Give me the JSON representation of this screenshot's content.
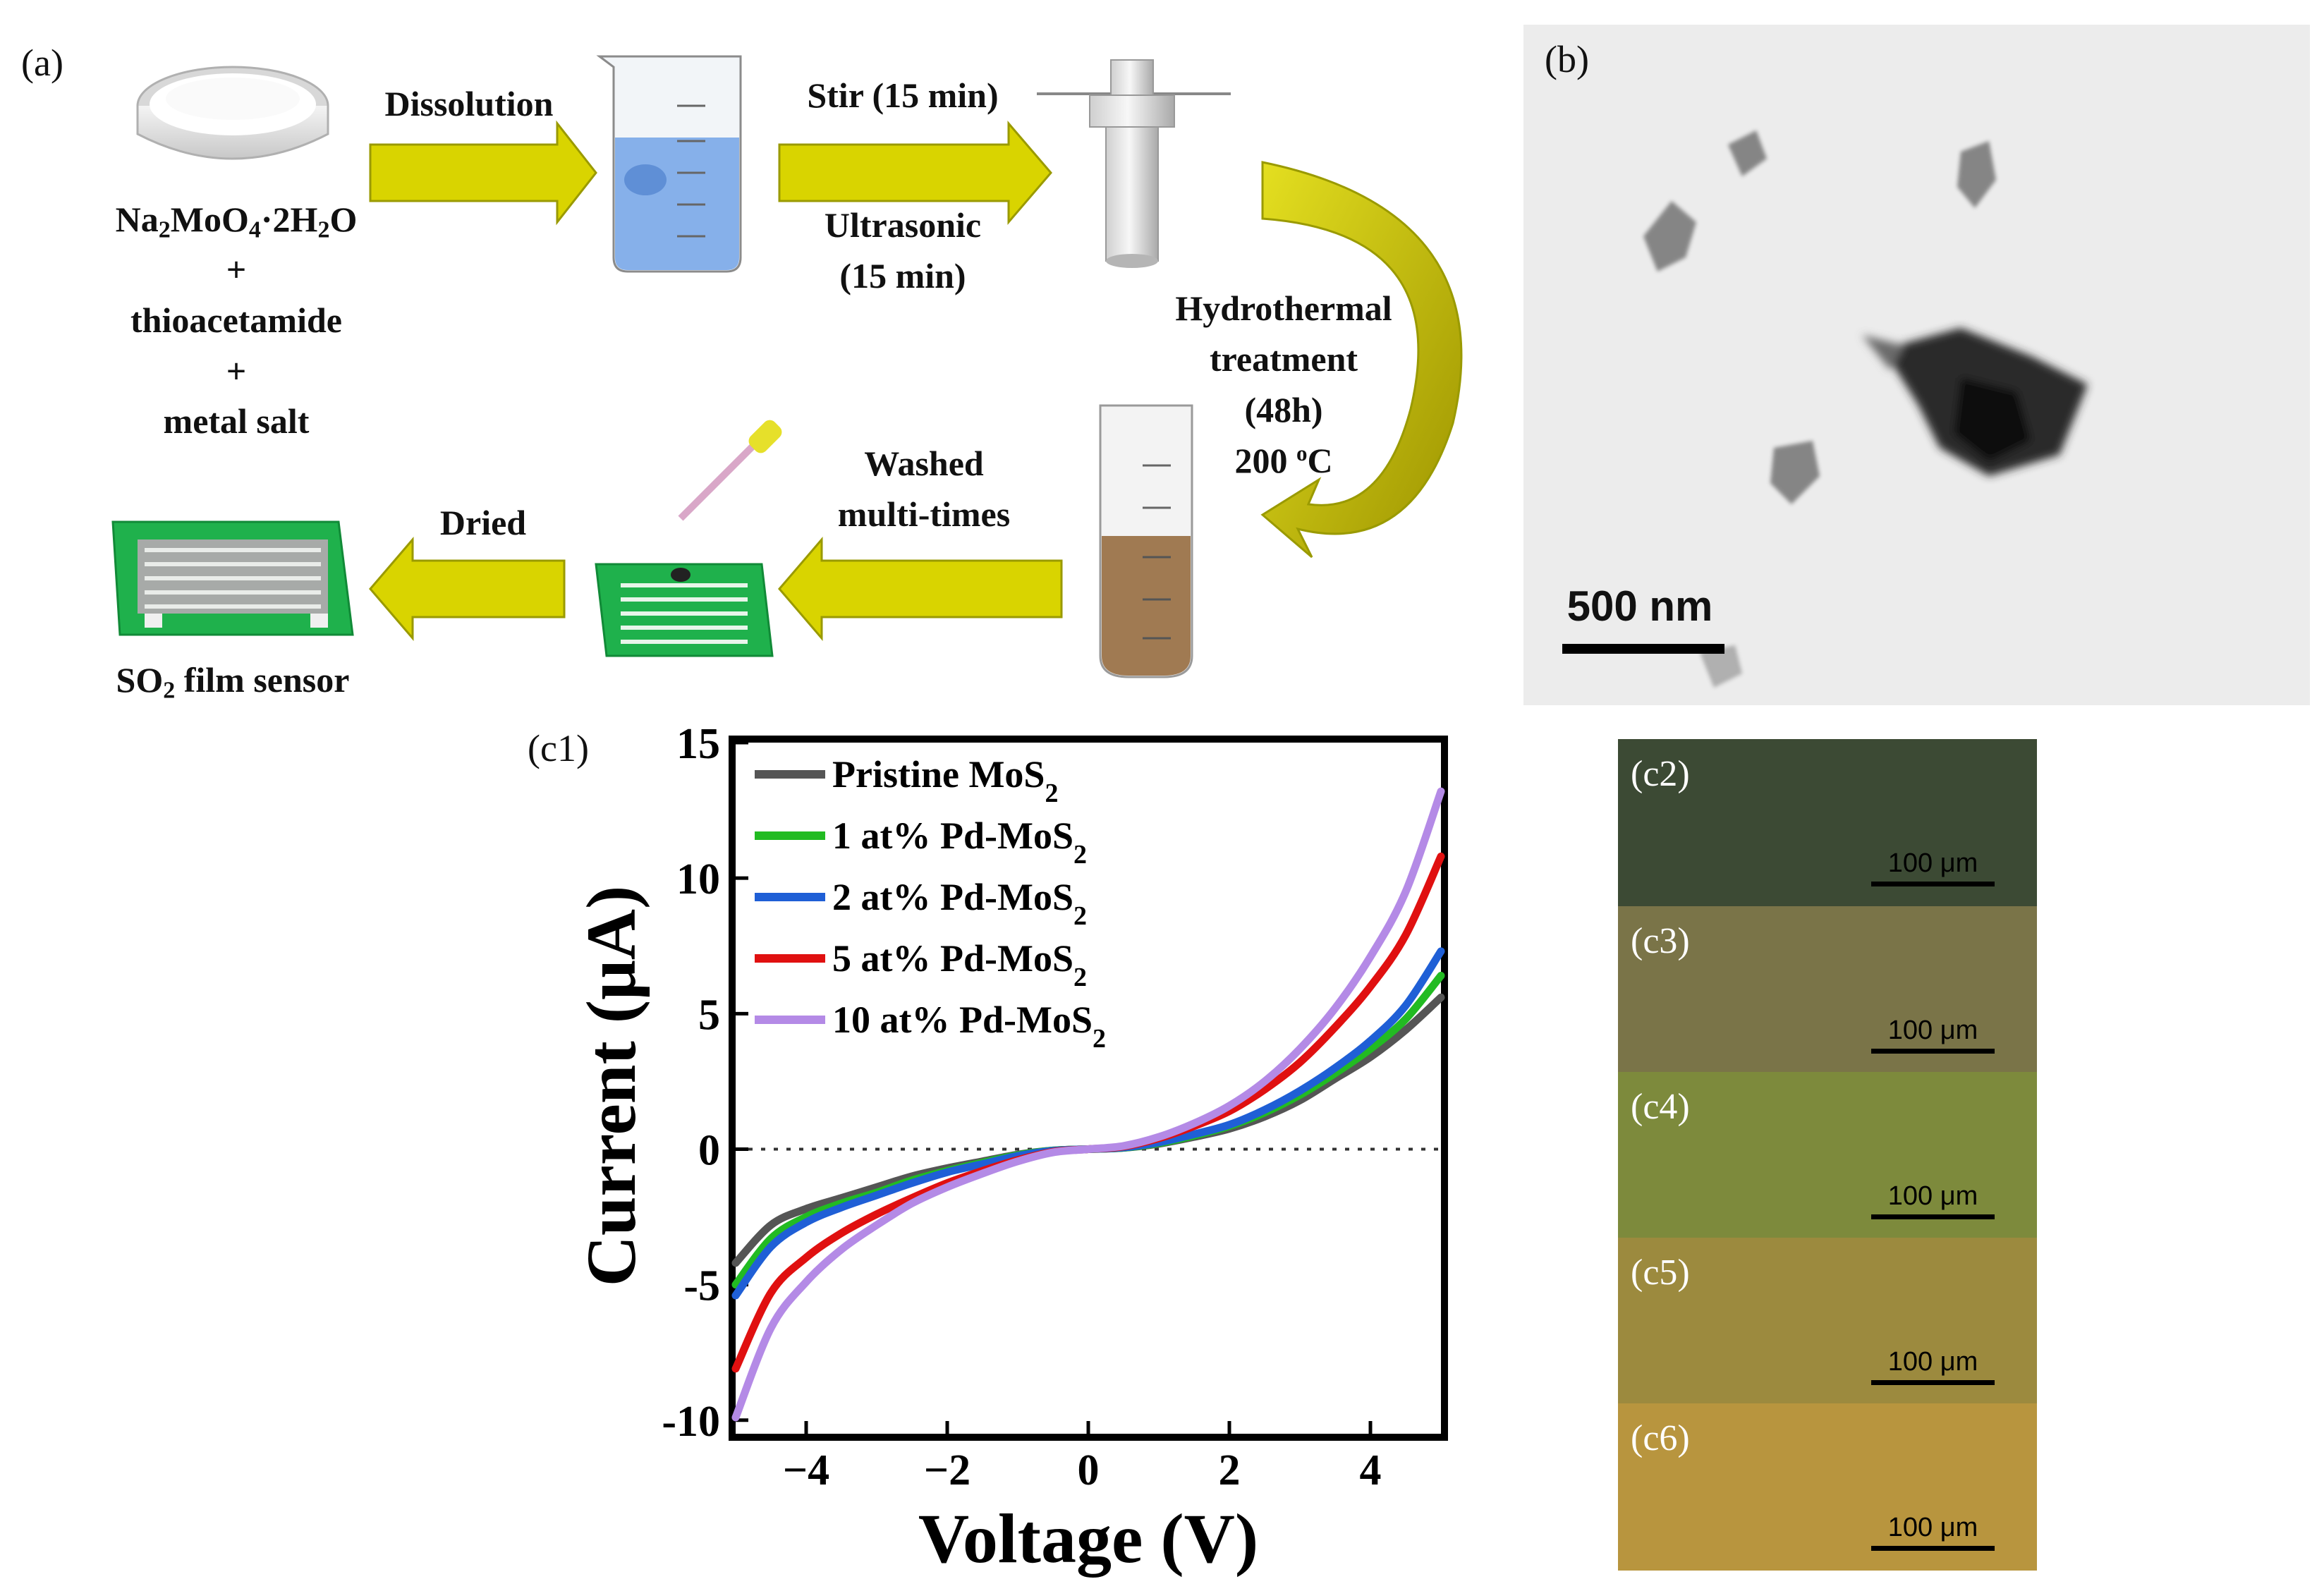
{
  "panel_a": {
    "label": "(a)",
    "reagents": {
      "line1_main": "Na",
      "line1_rest": "MoO",
      "line1_tail": "·2H",
      "line1_end": "O",
      "sub2": "2",
      "sub4": "4",
      "plus1": "+",
      "line2": "thioacetamide",
      "plus2": "+",
      "line3": "metal salt"
    },
    "steps": {
      "dissolution": "Dissolution",
      "stir": "Stir (15 min)",
      "ultrasonic_1": "Ultrasonic",
      "ultrasonic_2": "(15 min)",
      "hydro_1": "Hydrothermal",
      "hydro_2": "treatment",
      "hydro_3": "(48h)",
      "hydro_4a": "200 ",
      "hydro_4b": "o",
      "hydro_4c": "C",
      "washed_1": "Washed",
      "washed_2": "multi-times",
      "dried": "Dried"
    },
    "sensor_label": {
      "pre": "SO",
      "sub": "2",
      "post": " film sensor"
    },
    "colors": {
      "arrow": "#d9d400",
      "arrow_edge": "#9a9a00",
      "pcb": "#1fb14c",
      "liquid": "#7aa8e8",
      "brown": "#a07a52"
    }
  },
  "panel_b": {
    "label": "(b)",
    "scale": "500 nm"
  },
  "panel_c1": {
    "label": "(c1)"
  },
  "chart_data": {
    "type": "line",
    "xlabel": "Voltage (V)",
    "ylabel": "Current (μA)",
    "xlim": [
      -5,
      5
    ],
    "ylim": [
      -10.5,
      15
    ],
    "xticks": [
      -4,
      -2,
      0,
      2,
      4
    ],
    "yticks": [
      -10,
      -5,
      0,
      5,
      10,
      15
    ],
    "xtick_labels": [
      "−4",
      "−2",
      "0",
      "2",
      "4"
    ],
    "ytick_labels": [
      "-10",
      "-5",
      "0",
      "5",
      "10",
      "15"
    ],
    "zero_line": "dotted",
    "legend_position": "top-left",
    "x": [
      -5,
      -4.5,
      -4,
      -3.5,
      -3,
      -2.5,
      -2,
      -1.5,
      -1,
      -0.5,
      0,
      0.5,
      1,
      1.5,
      2,
      2.5,
      3,
      3.5,
      4,
      4.5,
      5
    ],
    "series": [
      {
        "name": "Pristine MoS",
        "sub": "2",
        "color": "#555555",
        "values": [
          -4.2,
          -2.8,
          -2.2,
          -1.8,
          -1.4,
          -1.0,
          -0.7,
          -0.45,
          -0.2,
          -0.05,
          0,
          0.05,
          0.2,
          0.45,
          0.75,
          1.2,
          1.8,
          2.6,
          3.4,
          4.4,
          5.6
        ]
      },
      {
        "name": "1 at% Pd-MoS",
        "sub": "2",
        "color": "#22bb22",
        "values": [
          -5.0,
          -3.3,
          -2.5,
          -2.0,
          -1.6,
          -1.15,
          -0.8,
          -0.5,
          -0.22,
          -0.05,
          0,
          0.05,
          0.22,
          0.5,
          0.85,
          1.35,
          2.0,
          2.8,
          3.7,
          4.8,
          6.4
        ]
      },
      {
        "name": "2 at% Pd-MoS",
        "sub": "2",
        "color": "#1f5fd6",
        "values": [
          -5.4,
          -3.6,
          -2.7,
          -2.15,
          -1.7,
          -1.25,
          -0.85,
          -0.55,
          -0.25,
          -0.06,
          0,
          0.06,
          0.25,
          0.55,
          0.9,
          1.45,
          2.15,
          3.0,
          4.0,
          5.3,
          7.3
        ]
      },
      {
        "name": "5 at% Pd-MoS",
        "sub": "2",
        "color": "#e01010",
        "values": [
          -8.1,
          -5.3,
          -4.0,
          -3.1,
          -2.4,
          -1.8,
          -1.25,
          -0.8,
          -0.4,
          -0.1,
          0,
          0.1,
          0.4,
          0.85,
          1.4,
          2.2,
          3.2,
          4.5,
          6.0,
          7.9,
          10.8
        ]
      },
      {
        "name": "10 at% Pd-MoS",
        "sub": "2",
        "color": "#b48ae6",
        "values": [
          -9.9,
          -6.6,
          -4.9,
          -3.7,
          -2.8,
          -2.0,
          -1.4,
          -0.9,
          -0.45,
          -0.12,
          0,
          0.12,
          0.45,
          0.95,
          1.6,
          2.5,
          3.7,
          5.2,
          7.1,
          9.5,
          13.2
        ]
      }
    ]
  },
  "panels_c2_c6": [
    {
      "label": "(c2)",
      "scale": "100 μm",
      "color": "#3c4a34"
    },
    {
      "label": "(c3)",
      "scale": "100 μm",
      "color": "#7a7448"
    },
    {
      "label": "(c4)",
      "scale": "100 μm",
      "color": "#7d8a3c"
    },
    {
      "label": "(c5)",
      "scale": "100 μm",
      "color": "#9c8a3e"
    },
    {
      "label": "(c6)",
      "scale": "100 μm",
      "color": "#b8953e"
    }
  ]
}
